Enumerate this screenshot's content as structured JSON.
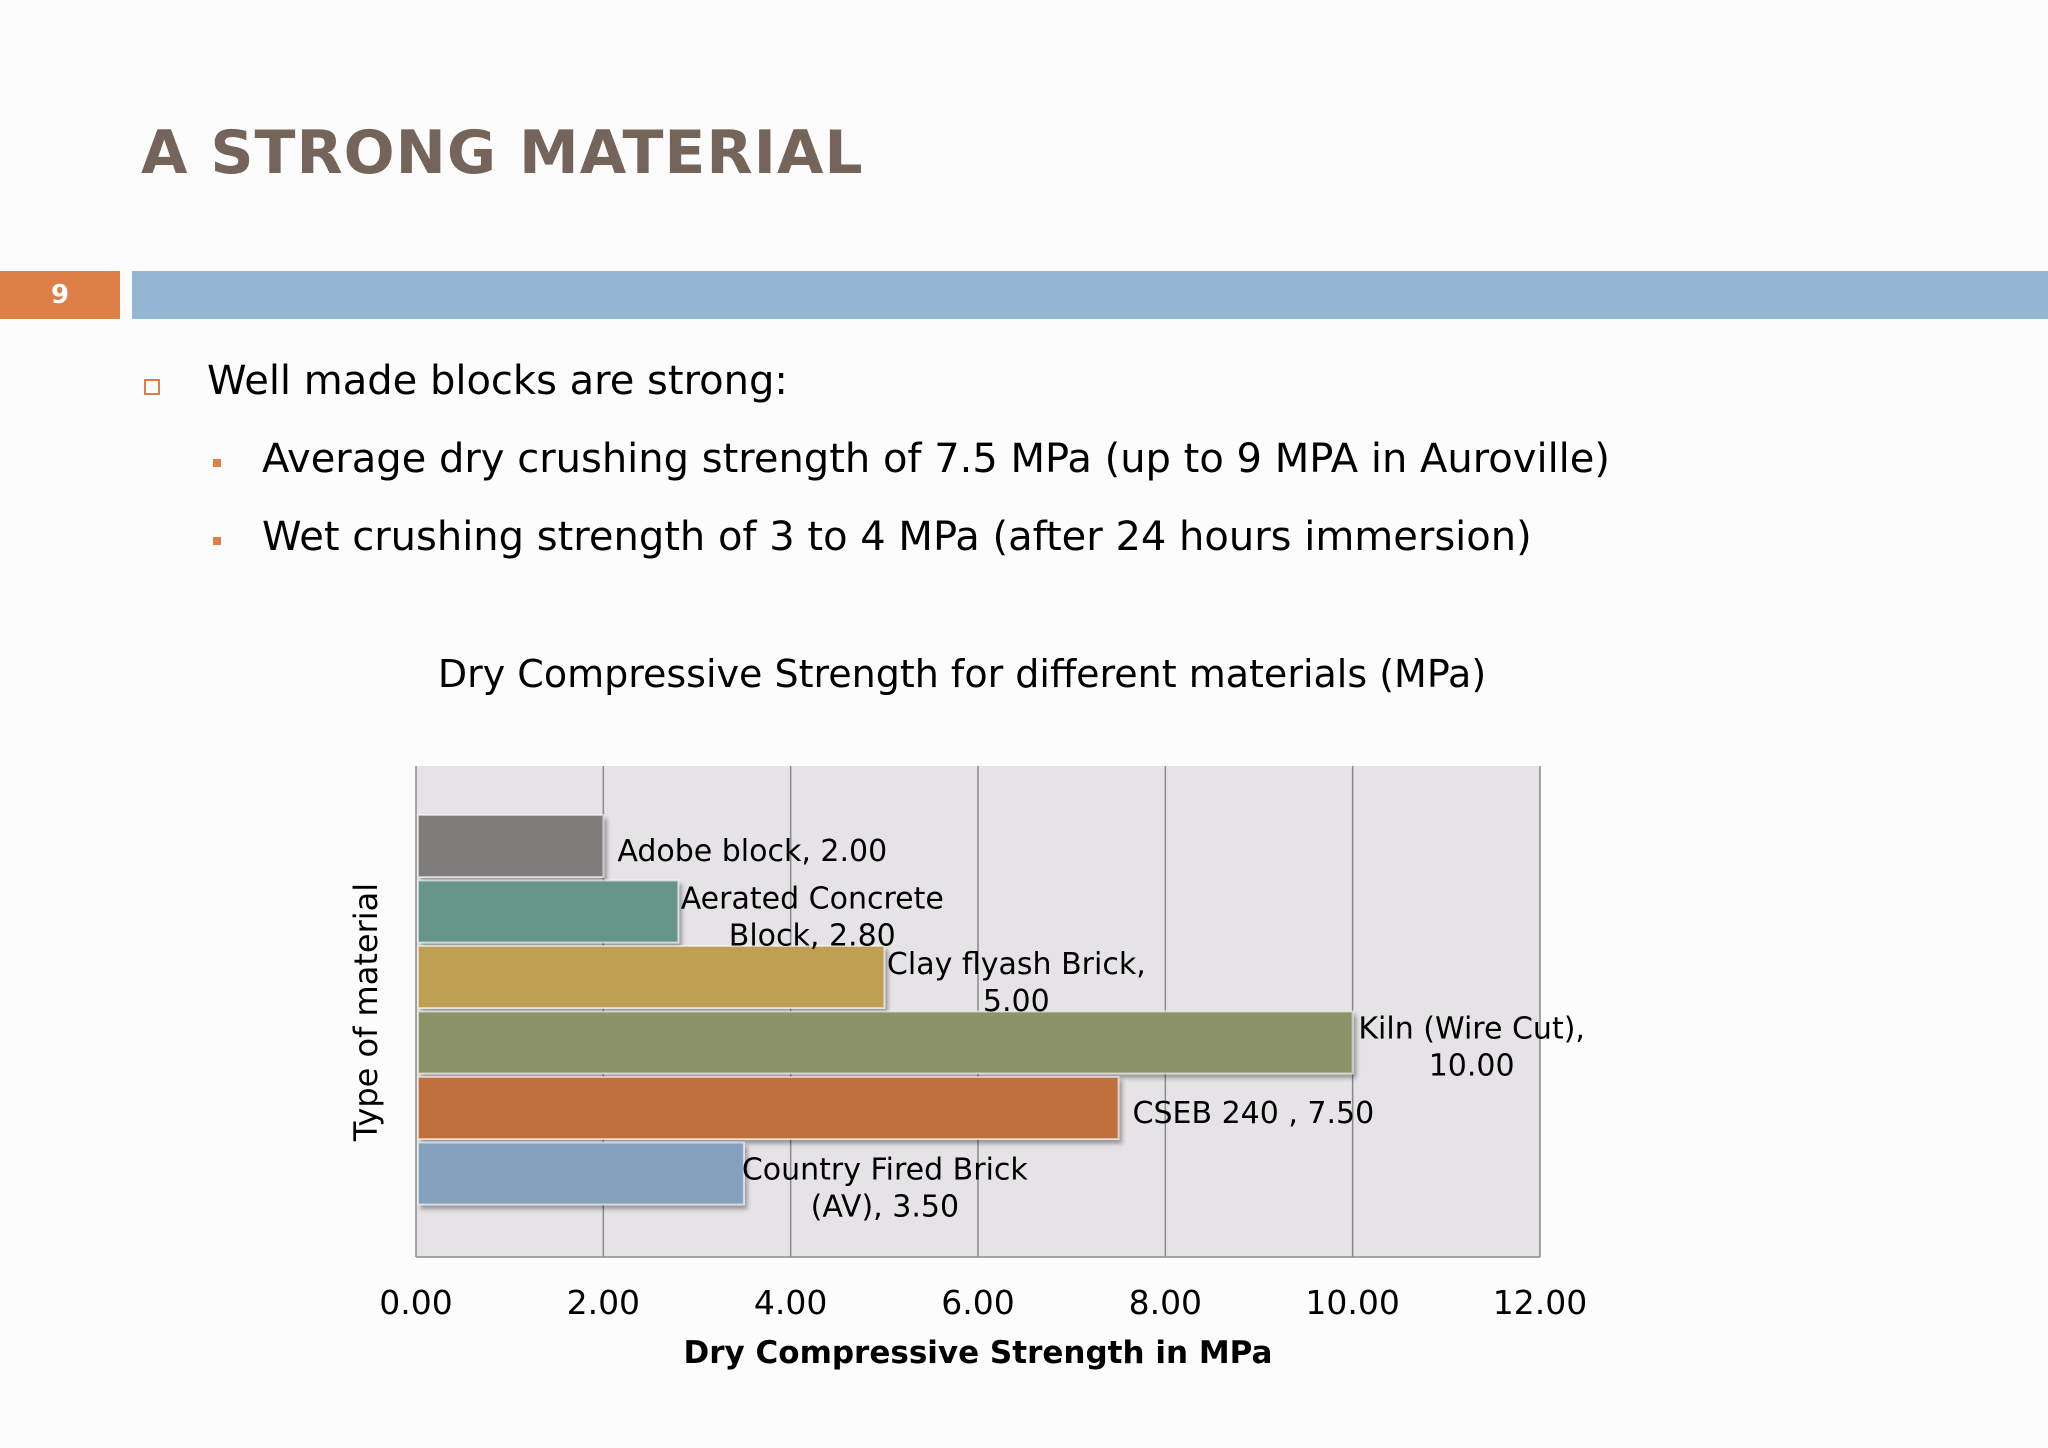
{
  "slide": {
    "title": "A STRONG MATERIAL",
    "page_number": "9",
    "accent_color": "#dd8047",
    "bar_color": "#94b6d2",
    "title_color": "#74645a"
  },
  "bullets": {
    "level1": "Well made blocks are strong:",
    "level2": [
      "Average dry crushing strength of 7.5 MPa (up to 9 MPA in Auroville)",
      "Wet crushing strength of 3 to 4 MPa (after 24 hours immersion)"
    ]
  },
  "chart_data": {
    "type": "bar",
    "orientation": "horizontal",
    "title": "Dry Compressive Strength for different materials (MPa)",
    "xlabel": "Dry Compressive Strength in MPa",
    "ylabel": "Type of material",
    "xlim": [
      0,
      12
    ],
    "xticks": [
      "0.00",
      "2.00",
      "4.00",
      "6.00",
      "8.00",
      "10.00",
      "12.00"
    ],
    "grid": "vertical",
    "plot_background": "#e5e3e6",
    "categories": [
      "Adobe block",
      "Aerated Concrete Block",
      "Clay flyash Brick",
      "Kiln (Wire Cut)",
      "CSEB  240",
      "Country Fired Brick (AV)"
    ],
    "values": [
      2.0,
      2.8,
      5.0,
      10.0,
      7.5,
      3.5
    ],
    "colors": [
      "#7f7b7b",
      "#669488",
      "#be9f52",
      "#8c936b",
      "#c0703e",
      "#84a2be"
    ],
    "data_labels": [
      [
        "Adobe block, 2.00"
      ],
      [
        "Aerated Concrete",
        "Block, 2.80"
      ],
      [
        "Clay flyash Brick,",
        "5.00"
      ],
      [
        "Kiln (Wire Cut),",
        "10.00"
      ],
      [
        "CSEB  240 , 7.50"
      ],
      [
        "Country Fired Brick",
        "(AV), 3.50"
      ]
    ]
  }
}
